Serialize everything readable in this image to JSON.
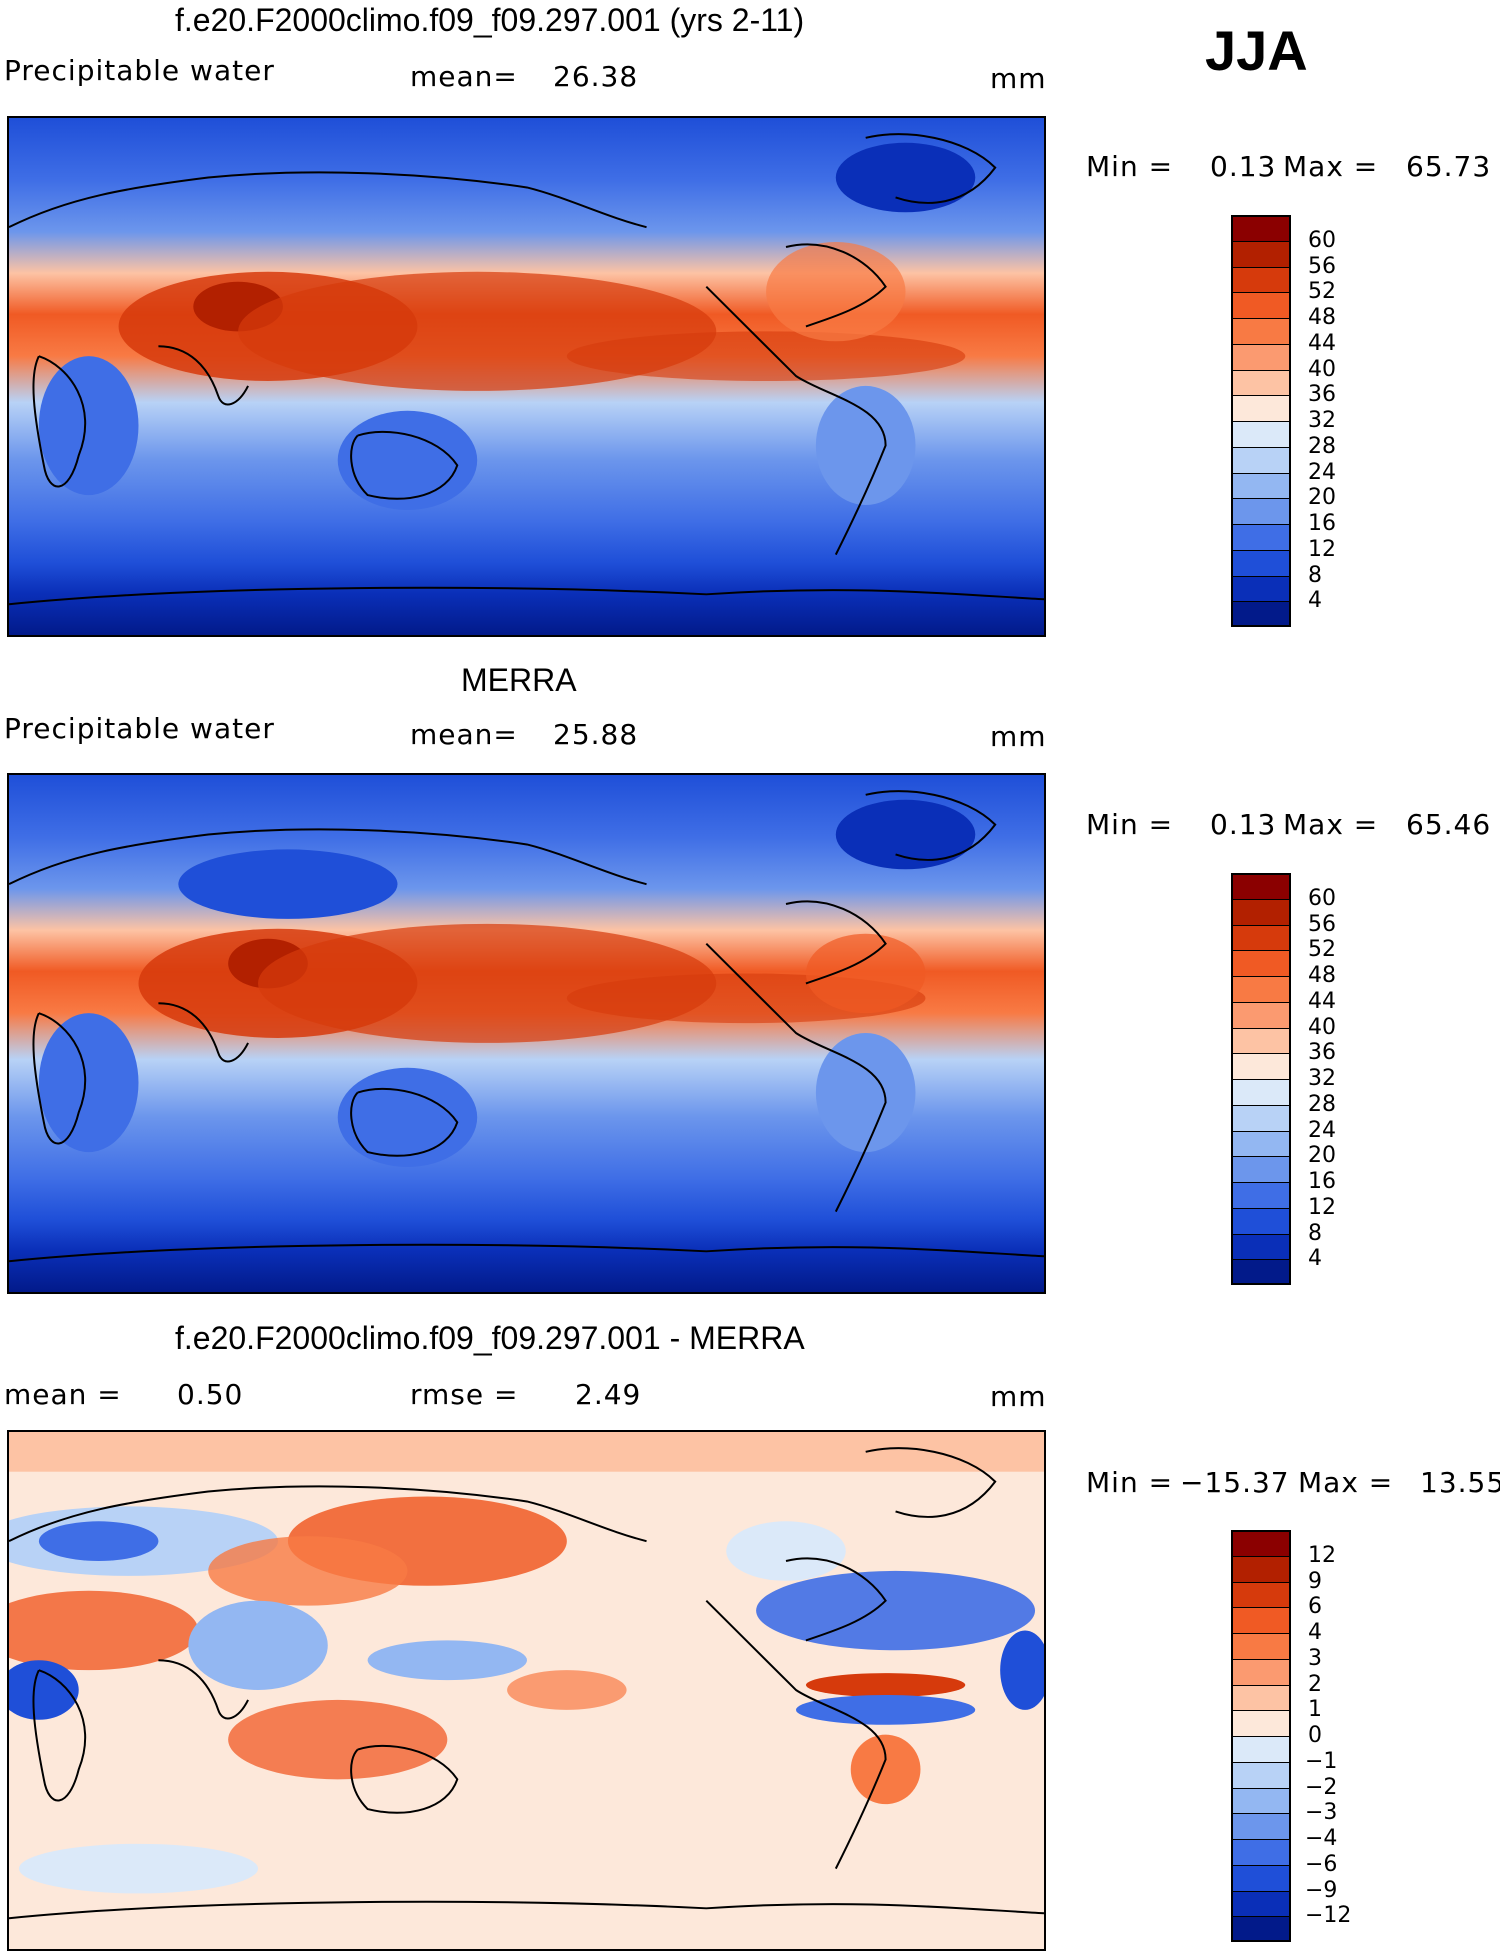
{
  "season": "JJA",
  "panels": [
    {
      "id": "model",
      "title": "f.e20.F2000climo.f09_f09.297.001 (yrs 2-11)",
      "left_label": "Precipitable  water",
      "mid_label": "mean=",
      "mid_value": "26.38",
      "units": "mm",
      "min_label": "Min  =",
      "min_value": "0.13",
      "max_label": "Max  =",
      "max_value": "65.73"
    },
    {
      "id": "obs",
      "title": "MERRA",
      "left_label": "Precipitable  water",
      "mid_label": "mean=",
      "mid_value": "25.88",
      "units": "mm",
      "min_label": "Min  =",
      "min_value": "0.13",
      "max_label": "Max  =",
      "max_value": "65.46"
    },
    {
      "id": "diff",
      "title": "f.e20.F2000climo.f09_f09.297.001 - MERRA",
      "left_label": "mean  =",
      "left_value": "0.50",
      "mid_label": "rmse  =",
      "mid_value": "2.49",
      "units": "mm",
      "min_label": "Min  =",
      "min_value": "−15.37",
      "max_label": "Max  =",
      "max_value": "13.55"
    }
  ],
  "colorbars": {
    "abs": {
      "labels": [
        "60",
        "56",
        "52",
        "48",
        "44",
        "40",
        "36",
        "32",
        "28",
        "24",
        "20",
        "16",
        "12",
        "8",
        "4"
      ],
      "colors": [
        "#8b0000",
        "#b22000",
        "#d63a0c",
        "#f05a24",
        "#f87a44",
        "#fb9a70",
        "#fdc3a4",
        "#fde8da",
        "#dbe9f9",
        "#b8d2f6",
        "#93b7f2",
        "#6c96ec",
        "#3f6ee6",
        "#1f4fd8",
        "#0a2fb8",
        "#021a8a"
      ]
    },
    "diff": {
      "labels": [
        "12",
        "9",
        "6",
        "4",
        "3",
        "2",
        "1",
        "0",
        "−1",
        "−2",
        "−3",
        "−4",
        "−6",
        "−9",
        "−12"
      ],
      "colors": [
        "#8b0000",
        "#b22000",
        "#d63a0c",
        "#f05a24",
        "#f87a44",
        "#fb9a70",
        "#fdc3a4",
        "#fde8da",
        "#dbe9f9",
        "#b8d2f6",
        "#93b7f2",
        "#6c96ec",
        "#3f6ee6",
        "#1f4fd8",
        "#0a2fb8",
        "#021a8a"
      ]
    }
  },
  "chart_data": [
    {
      "type": "heatmap",
      "title": "f.e20.F2000climo.f09_f09.297.001 (yrs 2-11)",
      "variable": "Precipitable  water",
      "units": "mm",
      "mean": 26.38,
      "min": 0.13,
      "max": 65.73,
      "contour_levels": [
        4,
        8,
        12,
        16,
        20,
        24,
        28,
        32,
        36,
        40,
        44,
        48,
        52,
        56,
        60
      ]
    },
    {
      "type": "heatmap",
      "title": "MERRA",
      "variable": "Precipitable  water",
      "units": "mm",
      "mean": 25.88,
      "min": 0.13,
      "max": 65.46,
      "contour_levels": [
        4,
        8,
        12,
        16,
        20,
        24,
        28,
        32,
        36,
        40,
        44,
        48,
        52,
        56,
        60
      ]
    },
    {
      "type": "heatmap",
      "title": "f.e20.F2000climo.f09_f09.297.001 - MERRA",
      "units": "mm",
      "mean": 0.5,
      "rmse": 2.49,
      "min": -15.37,
      "max": 13.55,
      "contour_levels": [
        -12,
        -9,
        -6,
        -4,
        -3,
        -2,
        -1,
        0,
        1,
        2,
        3,
        4,
        6,
        9,
        12
      ]
    }
  ]
}
